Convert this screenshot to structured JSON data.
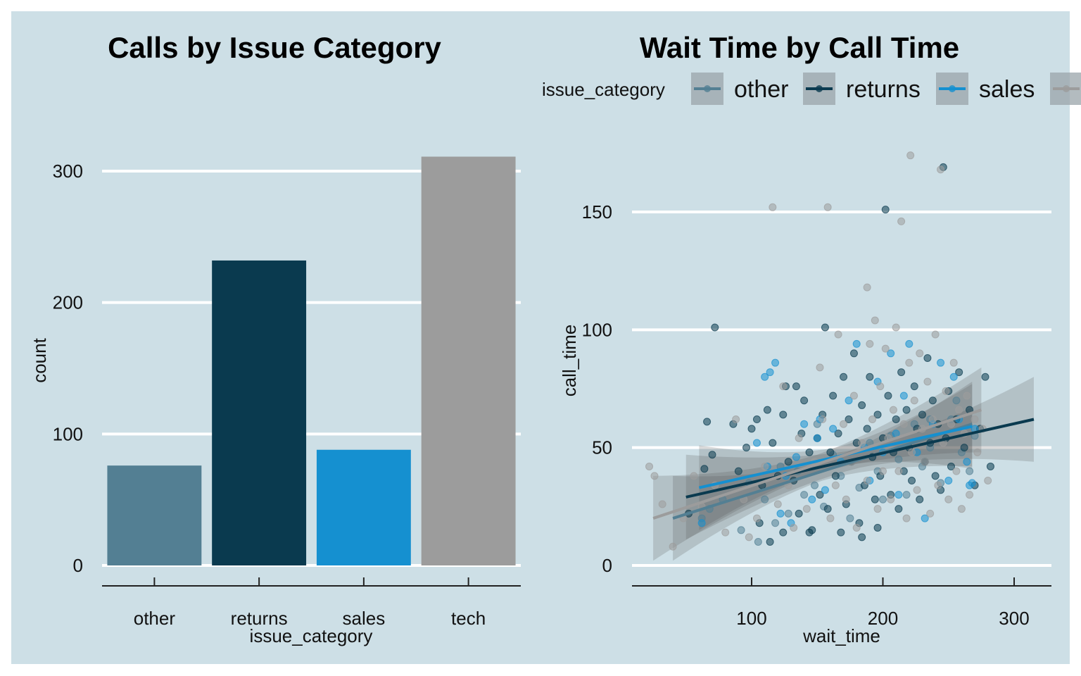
{
  "colors": {
    "background": "#cddfe6",
    "grid": "#ffffff",
    "axis": "#222222",
    "other": "#537f93",
    "returns": "#0a3a4f",
    "sales": "#1590d0",
    "tech": "#9c9c9c"
  },
  "chart_data": [
    {
      "type": "bar",
      "title": "Calls by Issue Category",
      "xlabel": "issue_category",
      "ylabel": "count",
      "categories": [
        "other",
        "returns",
        "sales",
        "tech"
      ],
      "values": [
        76,
        232,
        88,
        311
      ],
      "ylim": [
        0,
        320
      ],
      "yticks": [
        0,
        100,
        200,
        300
      ],
      "grid": "horizontal",
      "legend": "none"
    },
    {
      "type": "scatter",
      "title": "Wait Time by Call Time",
      "xlabel": "wait_time",
      "ylabel": "call_time",
      "xlim": [
        10,
        320
      ],
      "ylim": [
        0,
        175
      ],
      "xticks": [
        100,
        200,
        300
      ],
      "yticks": [
        0,
        50,
        100,
        150
      ],
      "grid": "horizontal",
      "legend_placement": "top",
      "legend_title": "issue_category",
      "legend_entries": [
        "other",
        "returns",
        "sales",
        "tech"
      ],
      "series": [
        {
          "name": "other",
          "points": [
            [
              62,
              20
            ],
            [
              68,
              24
            ],
            [
              78,
              28
            ],
            [
              92,
              15
            ],
            [
              98,
              35
            ],
            [
              105,
              10
            ],
            [
              110,
              28
            ],
            [
              118,
              18
            ],
            [
              122,
              42
            ],
            [
              128,
              22
            ],
            [
              135,
              40
            ],
            [
              140,
              30
            ],
            [
              148,
              34
            ],
            [
              155,
              25
            ],
            [
              162,
              47
            ],
            [
              168,
              38
            ],
            [
              175,
              20
            ],
            [
              182,
              33
            ],
            [
              190,
              52
            ],
            [
              196,
              40
            ],
            [
              200,
              28
            ],
            [
              206,
              55
            ],
            [
              212,
              45
            ],
            [
              218,
              30
            ],
            [
              224,
              60
            ],
            [
              230,
              42
            ],
            [
              236,
              50
            ],
            [
              244,
              35
            ],
            [
              252,
              62
            ],
            [
              260,
              48
            ],
            [
              266,
              40
            ],
            [
              270,
              55
            ],
            [
              256,
              70
            ],
            [
              236,
              62
            ],
            [
              150,
              60
            ]
          ],
          "fit": [
            [
              40,
              20
            ],
            [
              268,
              60
            ]
          ]
        },
        {
          "name": "returns",
          "points": [
            [
              52,
              22
            ],
            [
              64,
              41
            ],
            [
              66,
              61
            ],
            [
              70,
              47
            ],
            [
              72,
              101
            ],
            [
              86,
              60
            ],
            [
              90,
              40
            ],
            [
              96,
              50
            ],
            [
              100,
              58
            ],
            [
              104,
              62
            ],
            [
              108,
              34
            ],
            [
              112,
              66
            ],
            [
              116,
              52
            ],
            [
              120,
              38
            ],
            [
              124,
              64
            ],
            [
              126,
              76
            ],
            [
              128,
              44
            ],
            [
              132,
              36
            ],
            [
              134,
              76
            ],
            [
              136,
              22
            ],
            [
              138,
              56
            ],
            [
              140,
              70
            ],
            [
              144,
              48
            ],
            [
              146,
              15
            ],
            [
              150,
              54
            ],
            [
              152,
              30
            ],
            [
              154,
              64
            ],
            [
              156,
              101
            ],
            [
              158,
              24
            ],
            [
              160,
              48
            ],
            [
              162,
              72
            ],
            [
              164,
              38
            ],
            [
              166,
              56
            ],
            [
              170,
              80
            ],
            [
              172,
              26
            ],
            [
              174,
              62
            ],
            [
              176,
              44
            ],
            [
              178,
              90
            ],
            [
              180,
              52
            ],
            [
              182,
              18
            ],
            [
              184,
              68
            ],
            [
              186,
              34
            ],
            [
              188,
              58
            ],
            [
              190,
              80
            ],
            [
              192,
              46
            ],
            [
              194,
              28
            ],
            [
              196,
              64
            ],
            [
              198,
              38
            ],
            [
              200,
              54
            ],
            [
              202,
              151
            ],
            [
              204,
              72
            ],
            [
              206,
              30
            ],
            [
              208,
              48
            ],
            [
              210,
              62
            ],
            [
              212,
              24
            ],
            [
              214,
              82
            ],
            [
              216,
              40
            ],
            [
              218,
              66
            ],
            [
              220,
              50
            ],
            [
              222,
              36
            ],
            [
              224,
              76
            ],
            [
              226,
              58
            ],
            [
              228,
              28
            ],
            [
              230,
              64
            ],
            [
              232,
              44
            ],
            [
              234,
              88
            ],
            [
              236,
              52
            ],
            [
              238,
              70
            ],
            [
              240,
              38
            ],
            [
              242,
              60
            ],
            [
              244,
              32
            ],
            [
              246,
              169
            ],
            [
              248,
              54
            ],
            [
              250,
              74
            ],
            [
              252,
              42
            ],
            [
              256,
              62
            ],
            [
              258,
              82
            ],
            [
              262,
              50
            ],
            [
              266,
              66
            ],
            [
              270,
              34
            ],
            [
              274,
              58
            ],
            [
              278,
              80
            ],
            [
              282,
              42
            ],
            [
              106,
              18
            ],
            [
              114,
              10
            ],
            [
              124,
              14
            ],
            [
              144,
              14
            ],
            [
              168,
              14
            ],
            [
              184,
              12
            ],
            [
              196,
              16
            ]
          ],
          "fit": [
            [
              50,
              29
            ],
            [
              315,
              62
            ]
          ]
        },
        {
          "name": "sales",
          "points": [
            [
              62,
              18
            ],
            [
              104,
              52
            ],
            [
              110,
              80
            ],
            [
              112,
              42
            ],
            [
              114,
              82
            ],
            [
              118,
              86
            ],
            [
              122,
              22
            ],
            [
              126,
              38
            ],
            [
              130,
              18
            ],
            [
              134,
              46
            ],
            [
              140,
              60
            ],
            [
              146,
              28
            ],
            [
              150,
              54
            ],
            [
              152,
              62
            ],
            [
              156,
              32
            ],
            [
              162,
              58
            ],
            [
              168,
              44
            ],
            [
              174,
              70
            ],
            [
              180,
              94
            ],
            [
              186,
              50
            ],
            [
              190,
              36
            ],
            [
              196,
              78
            ],
            [
              200,
              48
            ],
            [
              206,
              90
            ],
            [
              210,
              56
            ],
            [
              212,
              30
            ],
            [
              216,
              72
            ],
            [
              220,
              94
            ],
            [
              226,
              48
            ],
            [
              232,
              20
            ],
            [
              238,
              60
            ],
            [
              244,
              86
            ],
            [
              250,
              36
            ],
            [
              254,
              80
            ],
            [
              258,
              62
            ],
            [
              264,
              44
            ],
            [
              268,
              35
            ],
            [
              270,
              58
            ],
            [
              266,
              34
            ]
          ],
          "fit": [
            [
              60,
              33
            ],
            [
              268,
              59
            ]
          ]
        },
        {
          "name": "tech",
          "points": [
            [
              22,
              42
            ],
            [
              26,
              38
            ],
            [
              32,
              26
            ],
            [
              40,
              8
            ],
            [
              48,
              20
            ],
            [
              56,
              38
            ],
            [
              62,
              25
            ],
            [
              72,
              34
            ],
            [
              80,
              14
            ],
            [
              88,
              62
            ],
            [
              94,
              28
            ],
            [
              98,
              12
            ],
            [
              104,
              20
            ],
            [
              110,
              42
            ],
            [
              116,
              152
            ],
            [
              120,
              26
            ],
            [
              124,
              76
            ],
            [
              128,
              34
            ],
            [
              132,
              16
            ],
            [
              136,
              54
            ],
            [
              142,
              24
            ],
            [
              148,
              44
            ],
            [
              152,
              84
            ],
            [
              154,
              62
            ],
            [
              158,
              152
            ],
            [
              160,
              20
            ],
            [
              164,
              34
            ],
            [
              166,
              98
            ],
            [
              170,
              60
            ],
            [
              172,
              28
            ],
            [
              176,
              44
            ],
            [
              178,
              72
            ],
            [
              180,
              16
            ],
            [
              184,
              52
            ],
            [
              188,
              36
            ],
            [
              190,
              94
            ],
            [
              192,
              62
            ],
            [
              194,
              104
            ],
            [
              196,
              24
            ],
            [
              198,
              76
            ],
            [
              200,
              40
            ],
            [
              202,
              92
            ],
            [
              204,
              54
            ],
            [
              206,
              28
            ],
            [
              208,
              66
            ],
            [
              210,
              101
            ],
            [
              212,
              40
            ],
            [
              214,
              146
            ],
            [
              216,
              60
            ],
            [
              218,
              20
            ],
            [
              220,
              86
            ],
            [
              221,
              174
            ],
            [
              222,
              48
            ],
            [
              224,
              70
            ],
            [
              226,
              32
            ],
            [
              228,
              90
            ],
            [
              230,
              58
            ],
            [
              232,
              44
            ],
            [
              234,
              78
            ],
            [
              236,
              22
            ],
            [
              238,
              62
            ],
            [
              240,
              98
            ],
            [
              242,
              34
            ],
            [
              244,
              168
            ],
            [
              246,
              52
            ],
            [
              248,
              74
            ],
            [
              250,
              28
            ],
            [
              252,
              60
            ],
            [
              254,
              86
            ],
            [
              256,
              40
            ],
            [
              258,
              66
            ],
            [
              260,
              24
            ],
            [
              262,
              56
            ],
            [
              264,
              72
            ],
            [
              266,
              30
            ],
            [
              270,
              62
            ],
            [
              272,
              48
            ],
            [
              276,
              58
            ],
            [
              280,
              36
            ],
            [
              188,
              118
            ]
          ],
          "fit": [
            [
              25,
              20
            ],
            [
              275,
              66
            ]
          ]
        }
      ]
    }
  ]
}
